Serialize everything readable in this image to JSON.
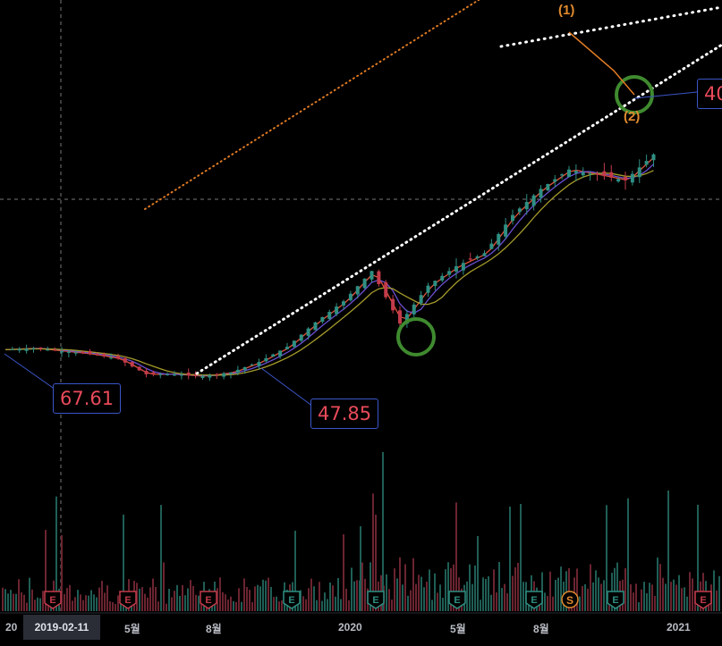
{
  "chart_data": {
    "type": "candlestick",
    "x_axis": {
      "tick_labels": [
        "20",
        "5월",
        "8월",
        "2020",
        "5월",
        "8월",
        "2021"
      ],
      "crosshair_date": "2019-02-11"
    },
    "callouts": [
      {
        "label": "67.61"
      },
      {
        "label": "47.85"
      },
      {
        "label": "40"
      }
    ],
    "wave_labels": [
      "(1)",
      "(2)"
    ],
    "event_markers": [
      "E",
      "E",
      "E",
      "E",
      "E",
      "E",
      "E",
      "S",
      "E",
      "E"
    ],
    "price_series": [
      [
        "2019-01",
        64
      ],
      [
        "2019-02",
        65
      ],
      [
        "2019-03",
        63
      ],
      [
        "2019-04",
        61
      ],
      [
        "2019-05",
        58
      ],
      [
        "2019-06",
        49
      ],
      [
        "2019-07",
        49
      ],
      [
        "2019-08",
        48
      ],
      [
        "2019-09",
        50
      ],
      [
        "2019-10",
        56
      ],
      [
        "2019-11",
        66
      ],
      [
        "2019-12",
        86
      ],
      [
        "2020-01",
        108
      ],
      [
        "2020-02",
        150
      ],
      [
        "2020-03",
        85
      ],
      [
        "2020-04",
        128
      ],
      [
        "2020-05",
        158
      ],
      [
        "2020-06",
        182
      ],
      [
        "2020-07",
        275
      ],
      [
        "2020-08",
        365
      ],
      [
        "2020-09",
        450
      ],
      [
        "2020-10",
        425
      ],
      [
        "2020-11",
        400
      ],
      [
        "2020-12",
        530
      ]
    ]
  },
  "colors": {
    "background": "#000000",
    "up": "#2e8f82",
    "down": "#c23b4a",
    "ma_short": "#e0513a",
    "ma_mid": "#6a4fd1",
    "ma_long": "#a59b2a",
    "trendline_white": "#ffffff",
    "trendline_orange": "#e07b24",
    "circle": "#3f8a2f",
    "callout_text": "#e84a5a",
    "callout_border": "#3b56c8"
  }
}
